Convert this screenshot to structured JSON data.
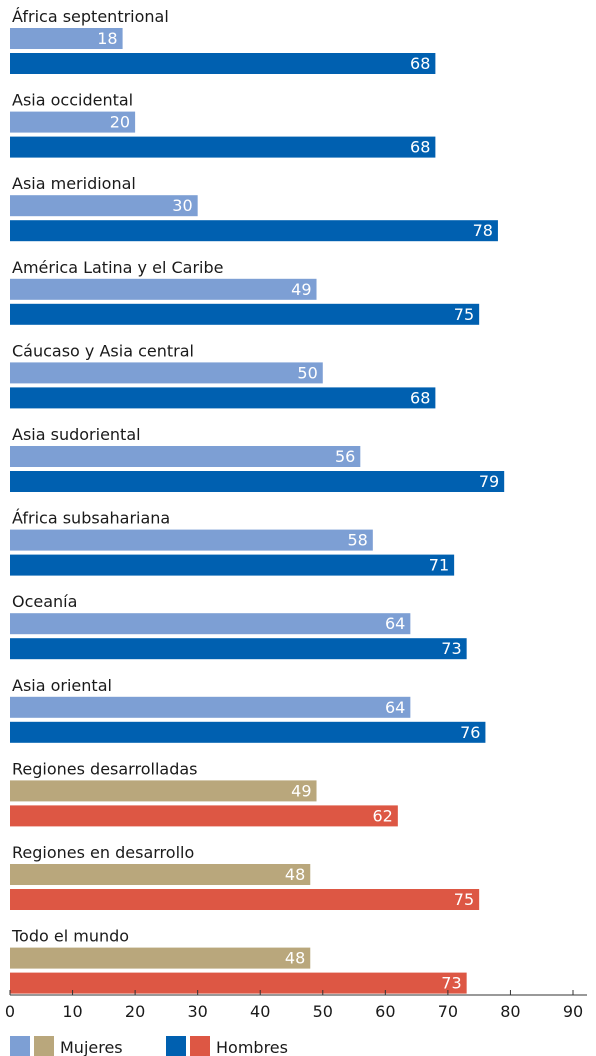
{
  "chart_data": {
    "type": "bar",
    "orientation": "horizontal",
    "xlim": [
      0,
      90
    ],
    "x_ticks": [
      "0",
      "10",
      "20",
      "30",
      "40",
      "50",
      "60",
      "70",
      "80",
      "90"
    ],
    "series": [
      {
        "name": "Mujeres"
      },
      {
        "name": "Hombres"
      }
    ],
    "categories": [
      {
        "label": "África septentrional",
        "group": "region",
        "values": [
          18,
          68
        ]
      },
      {
        "label": "Asia occidental",
        "group": "region",
        "values": [
          20,
          68
        ]
      },
      {
        "label": "Asia meridional",
        "group": "region",
        "values": [
          30,
          78
        ]
      },
      {
        "label": "América Latina y el Caribe",
        "group": "region",
        "values": [
          49,
          75
        ]
      },
      {
        "label": "Cáucaso y Asia central",
        "group": "region",
        "values": [
          50,
          68
        ]
      },
      {
        "label": "Asia sudoriental",
        "group": "region",
        "values": [
          56,
          79
        ]
      },
      {
        "label": "África subsahariana",
        "group": "region",
        "values": [
          58,
          71
        ]
      },
      {
        "label": "Oceanía",
        "group": "region",
        "values": [
          64,
          73
        ]
      },
      {
        "label": "Asia oriental",
        "group": "region",
        "values": [
          64,
          76
        ]
      },
      {
        "label": "Regiones desarrolladas",
        "group": "aggregate",
        "values": [
          49,
          62
        ]
      },
      {
        "label": "Regiones en desarrollo",
        "group": "aggregate",
        "values": [
          48,
          75
        ]
      },
      {
        "label": "Todo el mundo",
        "group": "aggregate",
        "values": [
          48,
          73
        ]
      }
    ],
    "colors": {
      "region_women": "#7d9fd4",
      "region_men": "#0060b0",
      "aggregate_women": "#b9a77c",
      "aggregate_men": "#dd5744"
    },
    "grid": false,
    "legend_position": "bottom-left"
  }
}
